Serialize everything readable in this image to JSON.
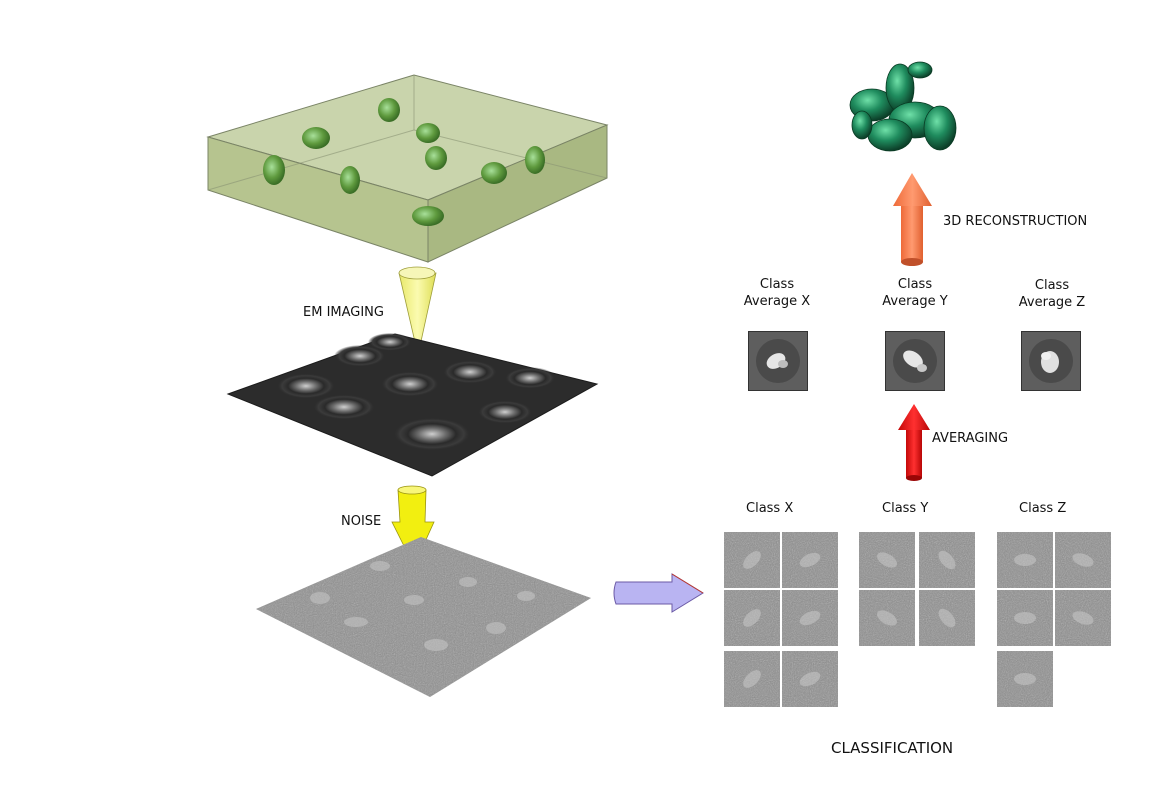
{
  "labels": {
    "em_imaging": "EM IMAGING",
    "noise": "NOISE",
    "reconstruction": "3D RECONSTRUCTION",
    "averaging": "AVERAGING",
    "classification": "CLASSIFICATION"
  },
  "class_averages": [
    {
      "line1": "Class",
      "line2": "Average X"
    },
    {
      "line1": "Class",
      "line2": "Average Y"
    },
    {
      "line1": "Class",
      "line2": "Average Z"
    }
  ],
  "classes": [
    {
      "label": "Class X",
      "count": 6
    },
    {
      "label": "Class Y",
      "count": 4
    },
    {
      "label": "Class Z",
      "count": 5
    }
  ],
  "colors": {
    "box_fill": "#b9c79a",
    "particle_green": "#5f9a3e",
    "em_arrow": "#f5f58a",
    "noise_arrow": "#f2ef10",
    "class_arrow": "#b9b4f2",
    "averaging_arrow": "#e01010",
    "reconstruction_arrow": "#ff7a4a",
    "reconstruction_model": "#1f8c5e"
  }
}
